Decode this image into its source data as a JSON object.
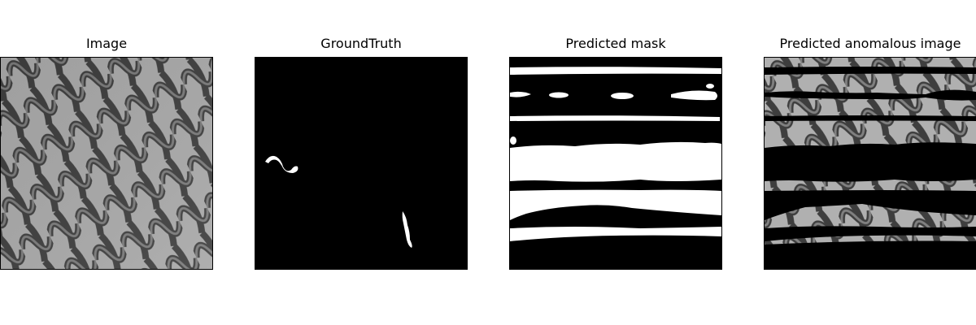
{
  "figure": {
    "panels": [
      {
        "title": "Image"
      },
      {
        "title": "GroundTruth"
      },
      {
        "title": "Predicted mask"
      },
      {
        "title": "Predicted anomalous image"
      }
    ]
  },
  "colors": {
    "background": "#ffffff",
    "mask_foreground": "#ffffff",
    "mask_background": "#000000",
    "mesh_light": "#b3b3b3",
    "mesh_dark": "#3c3c3c"
  }
}
